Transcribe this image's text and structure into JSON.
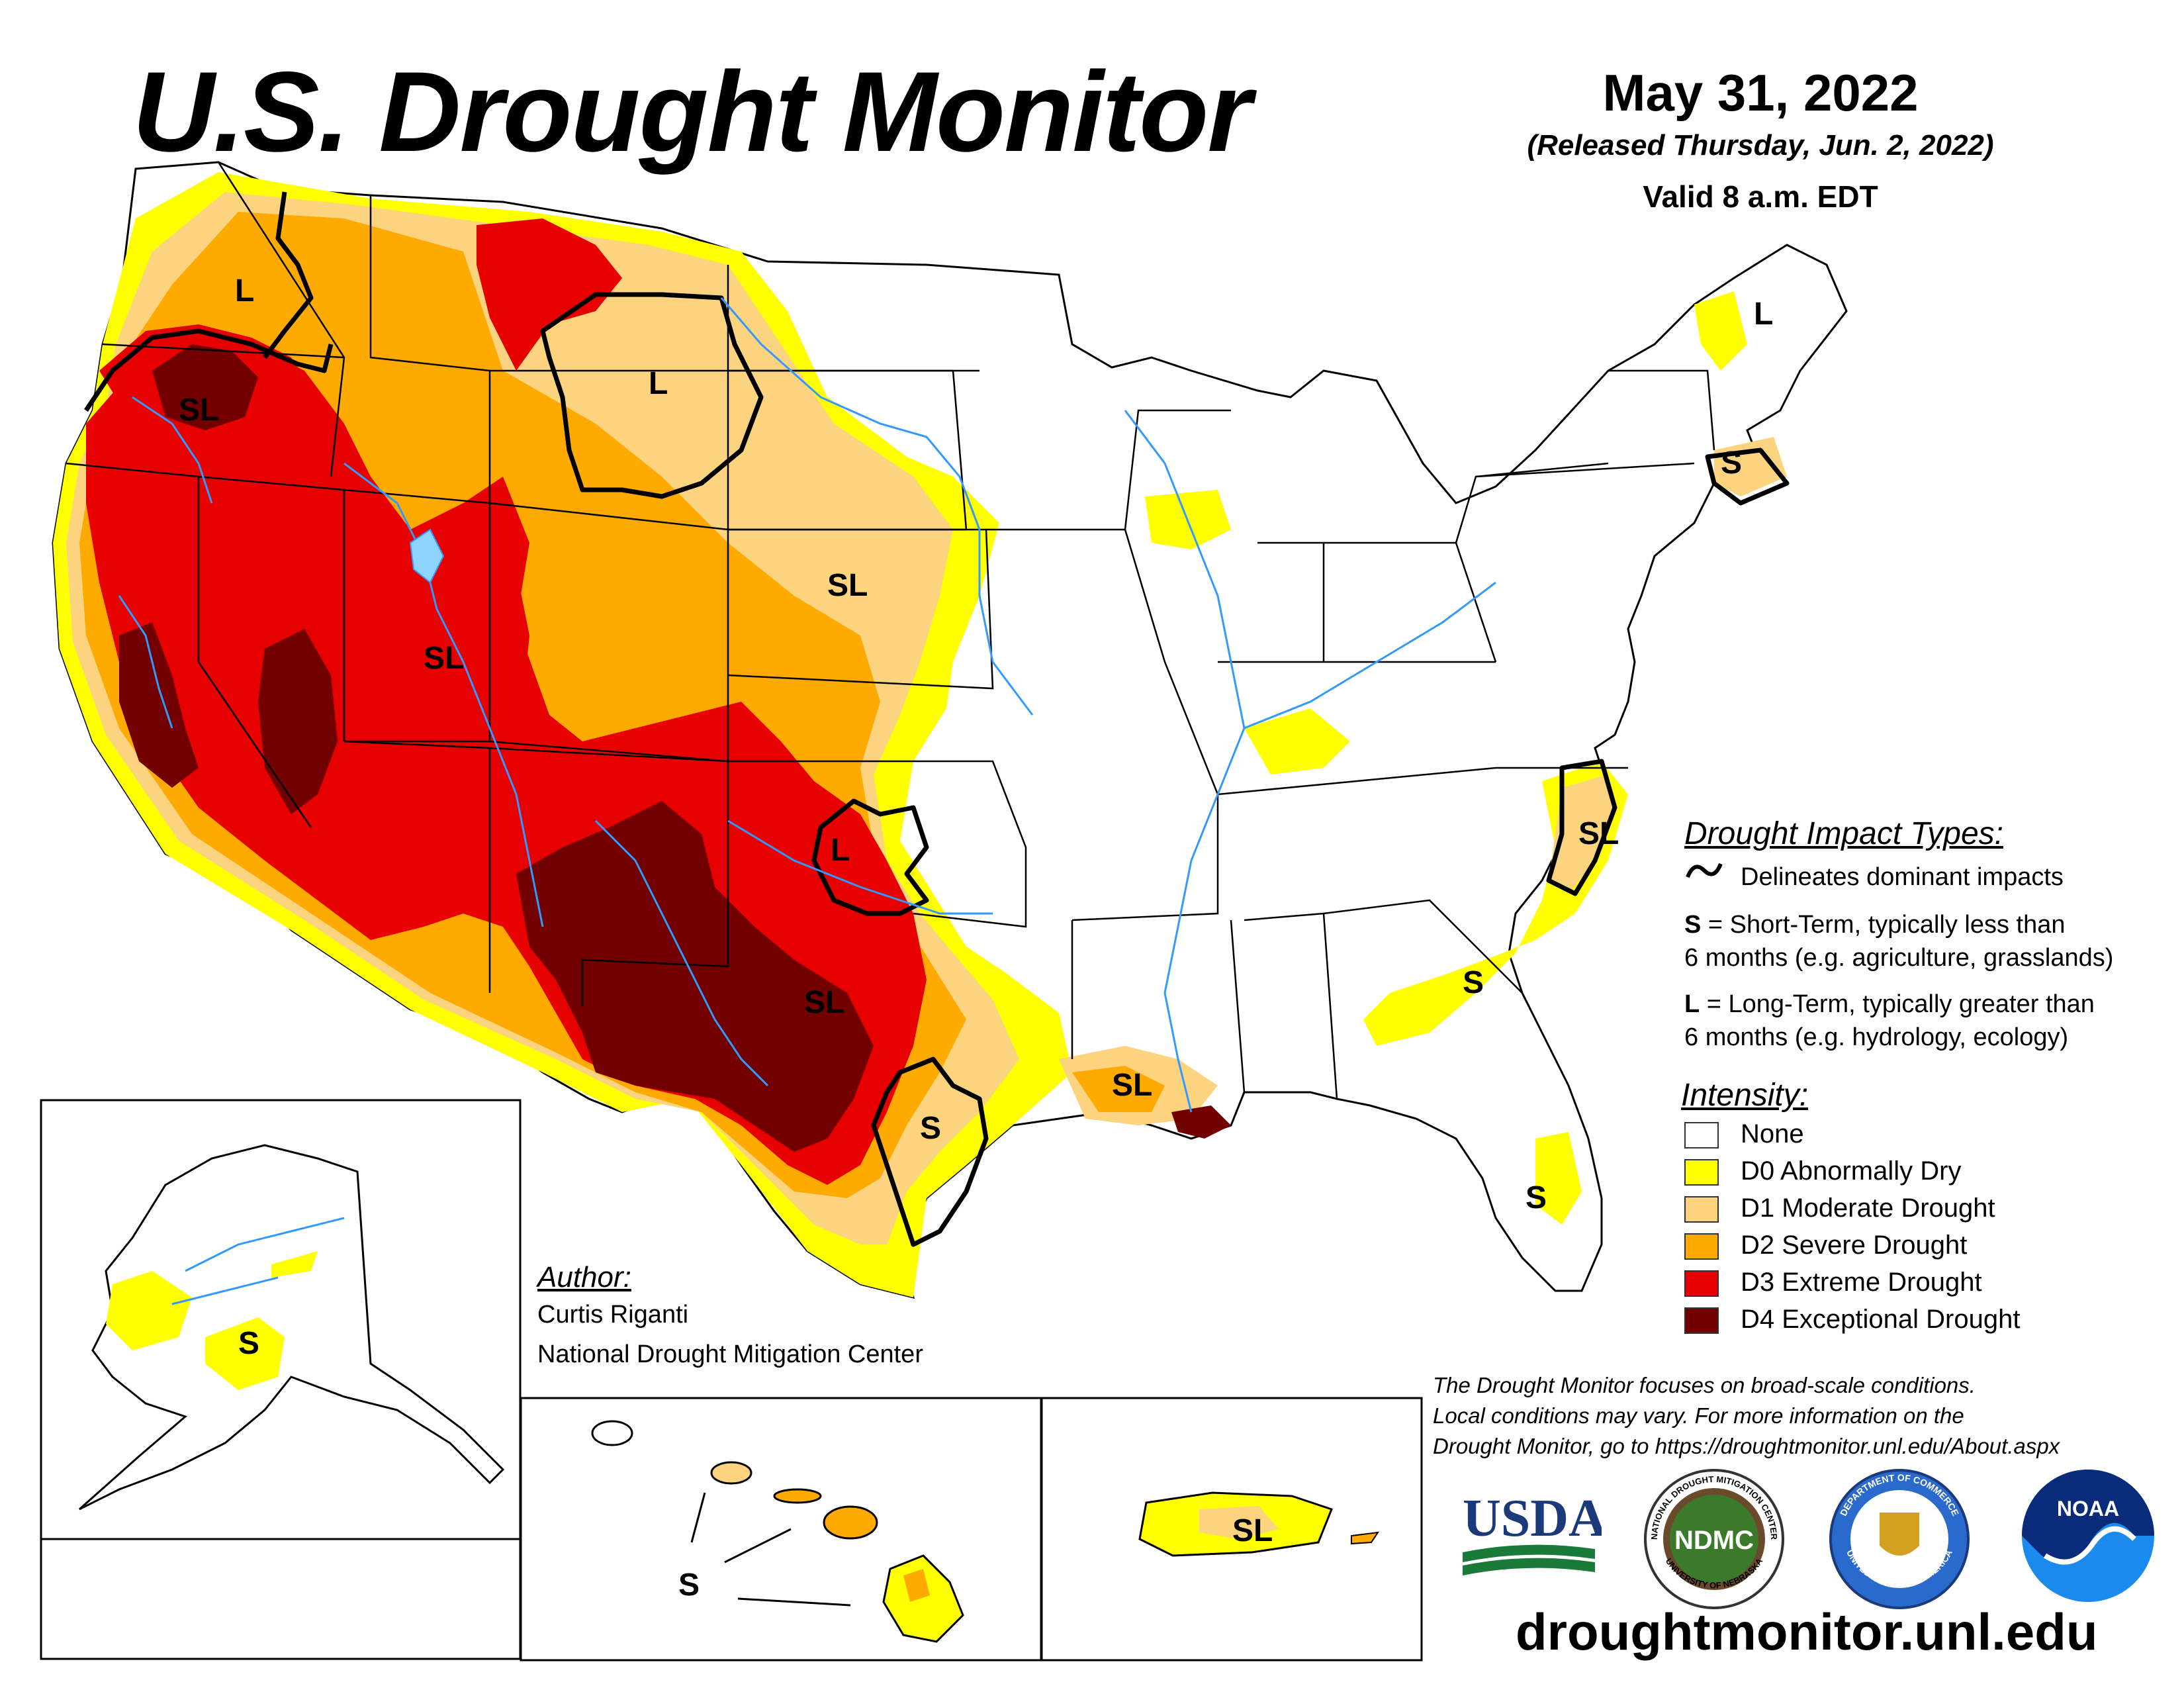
{
  "header": {
    "title": "U.S. Drought Monitor",
    "date": "May 31, 2022",
    "released": "(Released Thursday, Jun. 2, 2022)",
    "valid": "Valid 8 a.m. EDT"
  },
  "impact_legend": {
    "heading": "Drought Impact Types:",
    "delineates": "Delineates dominant impacts",
    "short_term_letter": "S",
    "short_term_text_1": " = Short-Term, typically less than",
    "short_term_text_2": "6 months (e.g. agriculture, grasslands)",
    "long_term_letter": "L",
    "long_term_text_1": " = Long-Term, typically greater than",
    "long_term_text_2": "6 months (e.g. hydrology, ecology)"
  },
  "intensity_legend": {
    "heading": "Intensity:",
    "items": [
      {
        "label": "None",
        "color": "#ffffff"
      },
      {
        "label": "D0 Abnormally Dry",
        "color": "#ffff00"
      },
      {
        "label": "D1 Moderate Drought",
        "color": "#fcd37f"
      },
      {
        "label": "D2 Severe Drought",
        "color": "#ffaa00"
      },
      {
        "label": "D3 Extreme Drought",
        "color": "#e60000"
      },
      {
        "label": "D4 Exceptional Drought",
        "color": "#730000"
      }
    ]
  },
  "author": {
    "heading": "Author:",
    "name": "Curtis Riganti",
    "org": "National Drought Mitigation Center"
  },
  "footer": {
    "note_1": "The Drought Monitor focuses on broad-scale conditions.",
    "note_2": "Local conditions may vary. For more information on the",
    "note_3": "Drought Monitor, go to https://droughtmonitor.unl.edu/About.aspx",
    "site": "droughtmonitor.unl.edu"
  },
  "logos": {
    "usda": "USDA",
    "ndmc": "NDMC",
    "ndmc_ring_top": "NATIONAL DROUGHT MITIGATION CENTER",
    "ndmc_ring_bottom": "UNIVERSITY OF NEBRASKA",
    "commerce_ring_top": "DEPARTMENT OF COMMERCE",
    "commerce_ring_bottom": "UNITED STATES OF AMERICA",
    "noaa": "NOAA"
  },
  "map_labels": {
    "wa": "L",
    "mt": "L",
    "or": "SL",
    "ut": "SL",
    "ne": "SL",
    "ok": "L",
    "tx": "SL",
    "tx_coast": "S",
    "la": "SL",
    "nc": "SL",
    "ga": "S",
    "fl": "S",
    "me": "L",
    "ma": "S",
    "ak": "S",
    "hi": "S",
    "pr": "SL"
  }
}
